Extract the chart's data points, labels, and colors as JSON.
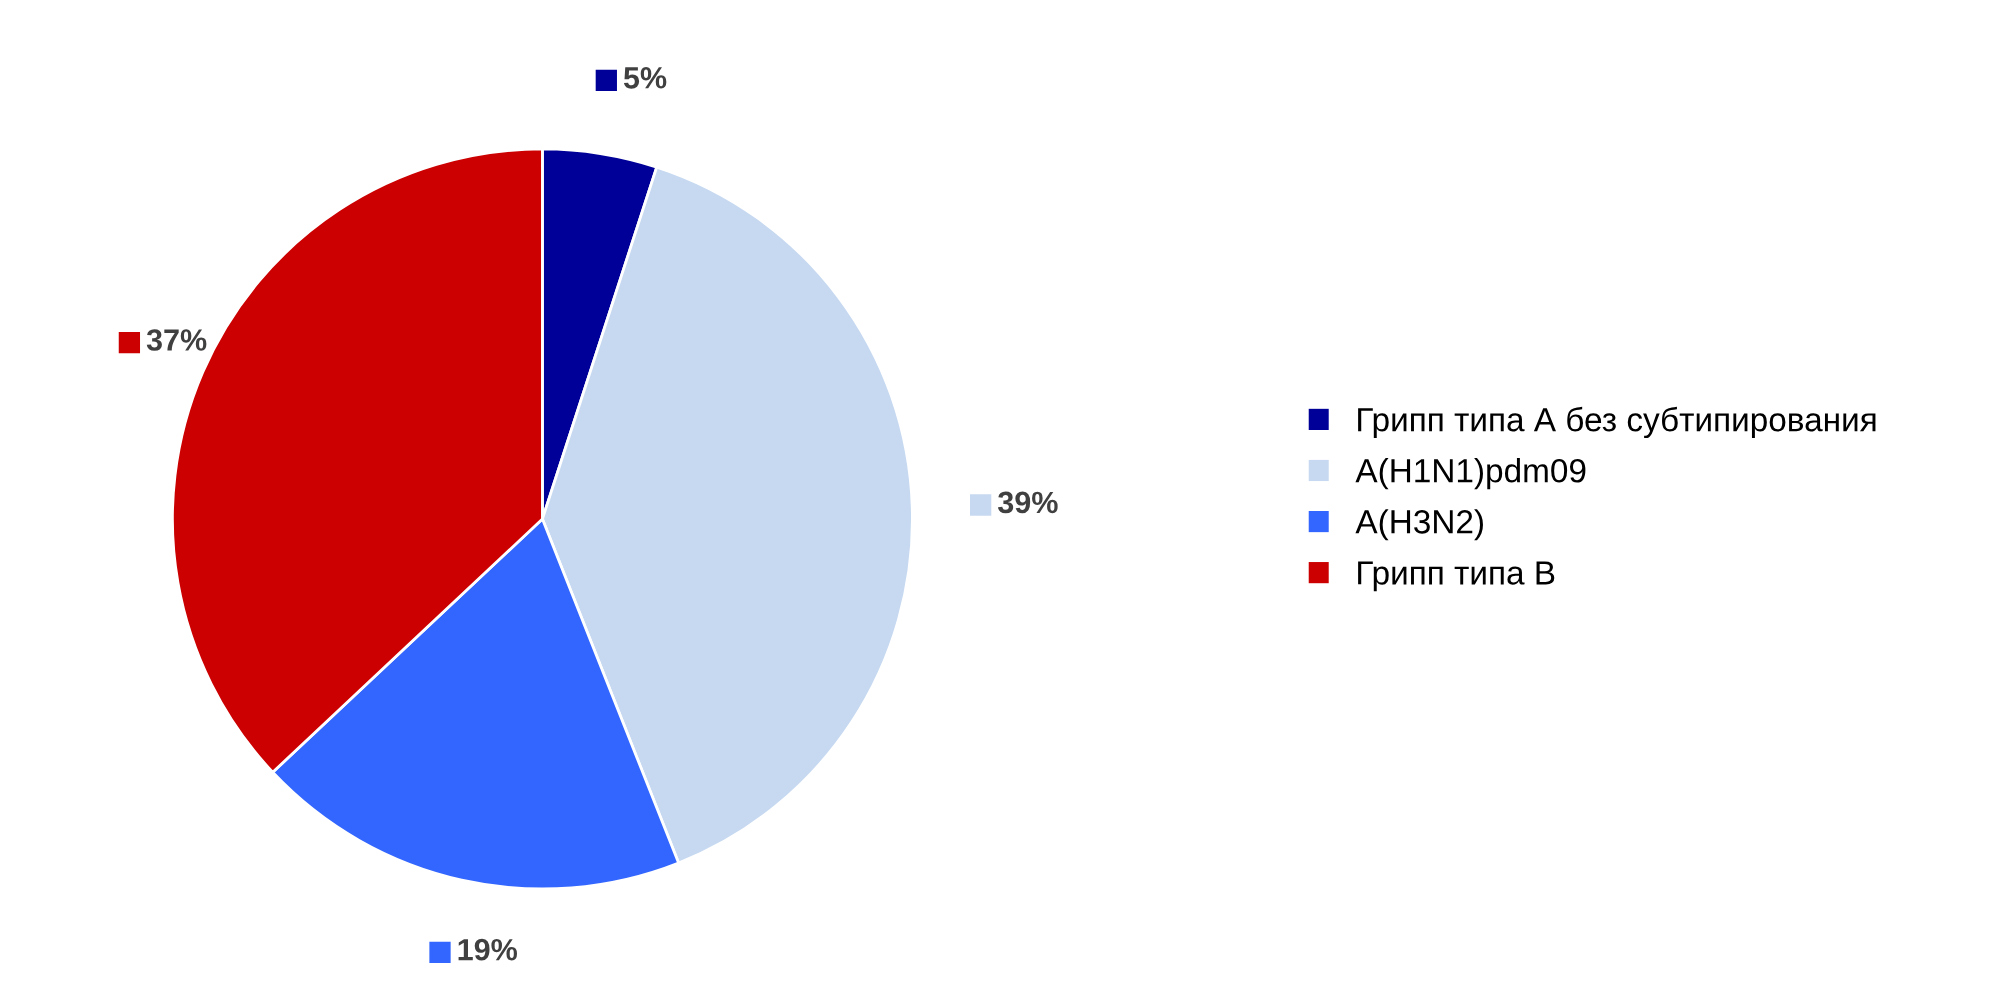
{
  "chart_data": {
    "type": "pie",
    "categories": [
      "Грипп типа А без субтипирования",
      "A(H1N1)pdm09",
      "A(H3N2)",
      "Грипп типа В"
    ],
    "values": [
      5,
      39,
      19,
      37
    ],
    "colors": [
      "#000099",
      "#c6d9f1",
      "#3366ff",
      "#cc0000"
    ],
    "value_labels": [
      "5%",
      "39%",
      "19%",
      "37%"
    ],
    "legend": "right"
  }
}
